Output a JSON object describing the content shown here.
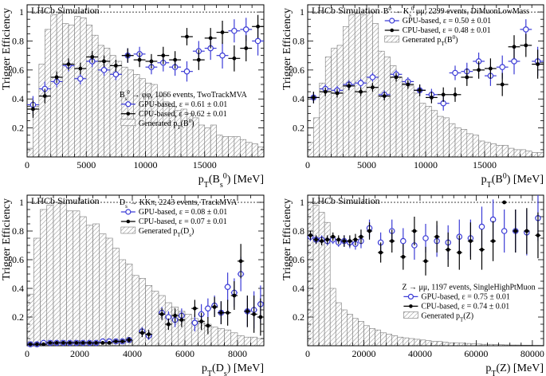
{
  "figure": {
    "ylabel": "Trigger Efficiency",
    "watermark": "LHCb Simulation"
  },
  "colors": {
    "gpu": "#3b3bd6",
    "cpu": "#000000",
    "hist": "#777777"
  },
  "chart_data": [
    {
      "type": "scatter",
      "watermark": "LHCb Simulation",
      "ylabel": "Trigger Efficiency",
      "xlabel": "p_T(B_s^0) [MeV]",
      "xlim": [
        0,
        20000
      ],
      "ylim": [
        0,
        1.05
      ],
      "xticks": [
        5000,
        10000,
        15000
      ],
      "yticks": [
        0.2,
        0.4,
        0.6,
        0.8,
        1
      ],
      "x_minor": 1000,
      "y_minor": 0.05,
      "legend_position": "middle-right",
      "legend": {
        "header": "B_s^0 → φφ, 1066 events, TwoTrackMVA",
        "gpu": "GPU-based, ε = 0.61 ± 0.01",
        "cpu": "CPU-based, ε = 0.62 ± 0.01",
        "hist": "Generated p_T(B^0)"
      },
      "hist": {
        "edges": [
          0,
          500,
          1000,
          1500,
          2000,
          2500,
          3000,
          3500,
          4000,
          4500,
          5000,
          5500,
          6000,
          6500,
          7000,
          7500,
          8000,
          8500,
          9000,
          9500,
          10000,
          10500,
          11000,
          11500,
          12000,
          12500,
          13000,
          13500,
          14000,
          14500,
          15000,
          15500,
          16000,
          16500,
          17000,
          17500,
          18000,
          18500,
          19000,
          19500,
          20000
        ],
        "values": [
          0.06,
          0.35,
          0.64,
          0.88,
          0.98,
          1.0,
          0.92,
          0.91,
          0.97,
          0.96,
          0.91,
          0.84,
          0.77,
          0.75,
          0.7,
          0.66,
          0.62,
          0.6,
          0.57,
          0.54,
          0.51,
          0.5,
          0.42,
          0.38,
          0.35,
          0.32,
          0.33,
          0.3,
          0.27,
          0.22,
          0.2,
          0.22,
          0.15,
          0.14,
          0.14,
          0.14,
          0.12,
          0.1,
          0.09,
          0.07
        ]
      },
      "gpu": {
        "x": [
          500,
          1500,
          2500,
          3500,
          4500,
          5500,
          6500,
          7500,
          8500,
          9500,
          10500,
          11500,
          12500,
          13500,
          14500,
          15500,
          16500,
          17500,
          18500,
          19500
        ],
        "y": [
          0.36,
          0.47,
          0.52,
          0.63,
          0.54,
          0.66,
          0.6,
          0.57,
          0.7,
          0.71,
          0.62,
          0.65,
          0.62,
          0.59,
          0.73,
          0.75,
          0.7,
          0.87,
          0.88,
          0.8
        ],
        "err": [
          0.06,
          0.05,
          0.04,
          0.04,
          0.04,
          0.04,
          0.04,
          0.04,
          0.05,
          0.05,
          0.05,
          0.06,
          0.06,
          0.07,
          0.07,
          0.08,
          0.09,
          0.08,
          0.08,
          0.1
        ]
      },
      "cpu": {
        "x": [
          500,
          1500,
          2500,
          3500,
          4500,
          5500,
          6500,
          7500,
          8500,
          9500,
          10500,
          11500,
          12500,
          13500,
          14500,
          15500,
          16500,
          17500,
          18500,
          19500
        ],
        "y": [
          0.33,
          0.42,
          0.55,
          0.64,
          0.61,
          0.69,
          0.66,
          0.63,
          0.7,
          0.67,
          0.66,
          0.7,
          0.67,
          0.83,
          0.67,
          0.82,
          0.86,
          0.68,
          0.75,
          0.9
        ],
        "err": [
          0.06,
          0.05,
          0.04,
          0.04,
          0.04,
          0.04,
          0.04,
          0.04,
          0.05,
          0.05,
          0.05,
          0.06,
          0.06,
          0.06,
          0.07,
          0.07,
          0.08,
          0.09,
          0.09,
          0.08
        ]
      }
    },
    {
      "type": "scatter",
      "watermark": "LHCb Simulation",
      "ylabel": "Trigger Efficiency",
      "xlabel": "p_T(B^0) [MeV]",
      "xlim": [
        0,
        20000
      ],
      "ylim": [
        0,
        1.05
      ],
      "xticks": [
        5000,
        10000,
        15000
      ],
      "yticks": [
        0.2,
        0.4,
        0.6,
        0.8,
        1
      ],
      "x_minor": 1000,
      "y_minor": 0.05,
      "legend_position": "top-right",
      "legend": {
        "header": "B^0 → K_s^0 μμ, 2299 events, DiMuonLowMass",
        "gpu": "GPU-based, ε = 0.50 ± 0.01",
        "cpu": "CPU-based, ε = 0.48 ± 0.01",
        "hist": "Generated p_T(B^0)"
      },
      "hist": {
        "edges": [
          0,
          500,
          1000,
          1500,
          2000,
          2500,
          3000,
          3500,
          4000,
          4500,
          5000,
          5500,
          6000,
          6500,
          7000,
          7500,
          8000,
          8500,
          9000,
          9500,
          10000,
          10500,
          11000,
          11500,
          12000,
          12500,
          13000,
          13500,
          14000,
          14500,
          15000,
          15500,
          16000,
          16500,
          17000,
          17500,
          18000,
          18500,
          19000,
          19500,
          20000
        ],
        "values": [
          0.1,
          0.27,
          0.51,
          0.69,
          0.75,
          0.77,
          0.9,
          0.98,
          0.99,
          0.98,
          1.0,
          0.92,
          0.73,
          0.69,
          0.63,
          0.55,
          0.51,
          0.49,
          0.44,
          0.37,
          0.35,
          0.32,
          0.28,
          0.27,
          0.23,
          0.2,
          0.19,
          0.16,
          0.15,
          0.11,
          0.1,
          0.09,
          0.08,
          0.08,
          0.06,
          0.05,
          0.05,
          0.04,
          0.03,
          0.03
        ]
      },
      "gpu": {
        "x": [
          500,
          1500,
          2500,
          3500,
          4500,
          5500,
          6500,
          7500,
          8500,
          9500,
          10500,
          11500,
          12500,
          13500,
          14500,
          15500,
          16500,
          17500,
          18500,
          19500
        ],
        "y": [
          0.41,
          0.47,
          0.46,
          0.5,
          0.51,
          0.55,
          0.43,
          0.57,
          0.52,
          0.46,
          0.43,
          0.37,
          0.58,
          0.59,
          0.66,
          0.56,
          0.62,
          0.66,
          0.88,
          0.66
        ],
        "err": [
          0.04,
          0.03,
          0.03,
          0.03,
          0.03,
          0.03,
          0.03,
          0.03,
          0.03,
          0.04,
          0.04,
          0.05,
          0.05,
          0.06,
          0.06,
          0.07,
          0.08,
          0.09,
          0.07,
          0.1
        ]
      },
      "cpu": {
        "x": [
          500,
          1500,
          2500,
          3500,
          4500,
          5500,
          6500,
          7500,
          8500,
          9500,
          10500,
          11500,
          12500,
          13500,
          14500,
          15500,
          16500,
          17500,
          18500,
          19500
        ],
        "y": [
          0.41,
          0.45,
          0.44,
          0.49,
          0.45,
          0.48,
          0.42,
          0.55,
          0.5,
          0.46,
          0.41,
          0.43,
          0.43,
          0.55,
          0.6,
          0.61,
          0.5,
          0.76,
          0.77,
          0.64
        ],
        "err": [
          0.04,
          0.03,
          0.03,
          0.03,
          0.03,
          0.03,
          0.03,
          0.03,
          0.03,
          0.04,
          0.04,
          0.05,
          0.05,
          0.06,
          0.06,
          0.07,
          0.08,
          0.08,
          0.08,
          0.1
        ]
      }
    },
    {
      "type": "scatter",
      "watermark": "LHCb Simulation",
      "ylabel": "Trigger Efficiency",
      "xlabel": "p_T(D_s) [MeV]",
      "xlim": [
        0,
        9000
      ],
      "ylim": [
        0,
        1.05
      ],
      "xticks": [
        2000,
        4000,
        6000,
        8000
      ],
      "yticks": [
        0.2,
        0.4,
        0.6,
        0.8,
        1
      ],
      "x_minor": 500,
      "y_minor": 0.05,
      "legend_position": "top-right",
      "legend": {
        "header": "D_s → KKπ, 2243 events, TrackMVA",
        "gpu": "GPU-based, ε = 0.08 ± 0.01",
        "cpu": "CPU-based, ε = 0.07 ± 0.01",
        "hist": "Generated p_T(D_s)"
      },
      "hist": {
        "edges": [
          0,
          250,
          500,
          750,
          1000,
          1250,
          1500,
          1750,
          2000,
          2250,
          2500,
          2750,
          3000,
          3250,
          3500,
          3750,
          4000,
          4250,
          4500,
          4750,
          5000,
          5250,
          5500,
          5750,
          6000,
          6250,
          6500,
          6750,
          7000,
          7250,
          7500,
          7750,
          8000,
          8250,
          8500,
          8750,
          9000
        ],
        "values": [
          0.36,
          0.75,
          0.95,
          0.98,
          1.0,
          0.99,
          0.94,
          0.94,
          0.9,
          0.84,
          0.85,
          0.78,
          0.75,
          0.68,
          0.6,
          0.57,
          0.49,
          0.47,
          0.42,
          0.38,
          0.35,
          0.3,
          0.27,
          0.24,
          0.22,
          0.19,
          0.16,
          0.15,
          0.13,
          0.12,
          0.11,
          0.09,
          0.07,
          0.06,
          0.06,
          0.05
        ]
      },
      "gpu": {
        "x": [
          125,
          375,
          625,
          875,
          1125,
          1375,
          1625,
          1875,
          2125,
          2375,
          2625,
          2875,
          3125,
          3375,
          3625,
          3875,
          4375,
          4625,
          5125,
          5375,
          5625,
          5875,
          6375,
          6625,
          6875,
          7125,
          7375,
          7625,
          7875,
          8125,
          8375,
          8625,
          8875
        ],
        "y": [
          0.01,
          0.01,
          0.02,
          0.02,
          0.02,
          0.02,
          0.02,
          0.02,
          0.02,
          0.02,
          0.02,
          0.03,
          0.03,
          0.03,
          0.03,
          0.04,
          0.1,
          0.07,
          0.23,
          0.2,
          0.18,
          0.21,
          0.16,
          0.22,
          0.26,
          0.28,
          0.23,
          0.41,
          0.37,
          0.5,
          0.24,
          0.25,
          0.29
        ],
        "err": [
          0.01,
          0.01,
          0.01,
          0.01,
          0.01,
          0.01,
          0.01,
          0.01,
          0.01,
          0.01,
          0.01,
          0.01,
          0.01,
          0.01,
          0.01,
          0.02,
          0.03,
          0.03,
          0.04,
          0.04,
          0.05,
          0.05,
          0.06,
          0.07,
          0.07,
          0.07,
          0.08,
          0.1,
          0.1,
          0.12,
          0.11,
          0.13,
          0.13
        ]
      },
      "cpu": {
        "x": [
          125,
          375,
          625,
          875,
          1125,
          1375,
          1625,
          1875,
          2125,
          2375,
          2625,
          2875,
          3125,
          3375,
          3625,
          3875,
          4375,
          4625,
          5125,
          5375,
          5625,
          5875,
          6375,
          6625,
          6875,
          7125,
          7375,
          7625,
          7875,
          8125,
          8375,
          8625,
          8875
        ],
        "y": [
          0.01,
          0.01,
          0.01,
          0.02,
          0.02,
          0.02,
          0.02,
          0.02,
          0.02,
          0.02,
          0.02,
          0.02,
          0.02,
          0.03,
          0.03,
          0.04,
          0.09,
          0.08,
          0.22,
          0.15,
          0.21,
          0.18,
          0.26,
          0.17,
          0.14,
          0.27,
          0.23,
          0.23,
          0.35,
          0.59,
          0.24,
          0.22,
          0.2
        ],
        "err": [
          0.01,
          0.01,
          0.01,
          0.01,
          0.01,
          0.01,
          0.01,
          0.01,
          0.01,
          0.01,
          0.01,
          0.01,
          0.01,
          0.01,
          0.01,
          0.02,
          0.03,
          0.03,
          0.04,
          0.04,
          0.05,
          0.05,
          0.06,
          0.06,
          0.06,
          0.07,
          0.08,
          0.09,
          0.1,
          0.12,
          0.11,
          0.13,
          0.13
        ]
      }
    },
    {
      "type": "scatter",
      "watermark": "LHCb Simulation",
      "ylabel": "Trigger Efficiency",
      "xlabel": "p_T(Z) [MeV]",
      "xlim": [
        0,
        84000
      ],
      "ylim": [
        0,
        1.05
      ],
      "xticks": [
        20000,
        40000,
        60000,
        80000
      ],
      "yticks": [
        0.2,
        0.4,
        0.6,
        0.8,
        1
      ],
      "x_minor": 4000,
      "y_minor": 0.05,
      "legend_position": "bottom-right",
      "legend": {
        "header": "Z → μμ, 1197 events, SingleHighPtMuon",
        "gpu": "GPU-based, ε = 0.75 ± 0.01",
        "cpu": "CPU-based, ε = 0.74 ± 0.01",
        "hist": "Generated p_T(Z)"
      },
      "hist": {
        "edges": [
          0,
          2000,
          4000,
          6000,
          8000,
          10000,
          12000,
          14000,
          16000,
          18000,
          20000,
          22000,
          24000,
          26000,
          28000,
          30000,
          32000,
          34000,
          36000,
          38000,
          40000,
          42000,
          44000,
          46000,
          48000,
          50000,
          52000,
          54000,
          56000,
          58000,
          60000,
          62000,
          64000,
          66000,
          68000,
          70000,
          72000,
          74000,
          76000,
          78000,
          80000,
          82000,
          84000
        ],
        "values": [
          1.0,
          0.98,
          0.93,
          0.86,
          0.4,
          0.3,
          0.25,
          0.22,
          0.19,
          0.17,
          0.14,
          0.12,
          0.11,
          0.09,
          0.08,
          0.07,
          0.06,
          0.055,
          0.05,
          0.045,
          0.04,
          0.035,
          0.03,
          0.03,
          0.025,
          0.02,
          0.02,
          0.018,
          0.016,
          0.014,
          0.012,
          0.01,
          0.01,
          0.008,
          0.007,
          0.006,
          0.005,
          0.005,
          0.004,
          0.004,
          0.003,
          0.003
        ]
      },
      "gpu": {
        "x": [
          1000,
          3000,
          5000,
          7000,
          9000,
          11000,
          13000,
          15000,
          17000,
          19000,
          22000,
          26000,
          30000,
          34000,
          38000,
          42000,
          46000,
          50000,
          54000,
          58000,
          62000,
          66000,
          70000,
          74000,
          78000,
          82000
        ],
        "y": [
          0.76,
          0.74,
          0.74,
          0.73,
          0.74,
          0.72,
          0.73,
          0.72,
          0.71,
          0.73,
          0.82,
          0.72,
          0.8,
          0.73,
          0.7,
          0.75,
          0.73,
          0.72,
          0.76,
          0.75,
          0.83,
          0.88,
          0.8,
          0.8,
          0.79,
          0.89
        ],
        "err": [
          0.03,
          0.03,
          0.03,
          0.03,
          0.03,
          0.03,
          0.04,
          0.04,
          0.04,
          0.05,
          0.06,
          0.07,
          0.08,
          0.09,
          0.1,
          0.1,
          0.11,
          0.12,
          0.12,
          0.13,
          0.14,
          0.14,
          0.15,
          0.15,
          0.16,
          0.16
        ]
      },
      "cpu": {
        "x": [
          1000,
          3000,
          5000,
          7000,
          9000,
          11000,
          13000,
          15000,
          17000,
          19000,
          22000,
          26000,
          30000,
          34000,
          38000,
          42000,
          46000,
          50000,
          54000,
          58000,
          62000,
          66000,
          70000,
          74000,
          78000,
          82000
        ],
        "y": [
          0.77,
          0.74,
          0.73,
          0.74,
          0.76,
          0.74,
          0.73,
          0.73,
          0.74,
          0.76,
          0.8,
          0.65,
          0.73,
          0.62,
          0.8,
          0.59,
          0.76,
          0.67,
          0.65,
          0.73,
          0.67,
          0.73,
          1.0,
          0.8,
          0.8,
          0.77
        ],
        "err": [
          0.03,
          0.03,
          0.03,
          0.03,
          0.03,
          0.03,
          0.04,
          0.04,
          0.04,
          0.05,
          0.06,
          0.07,
          0.08,
          0.09,
          0.1,
          0.1,
          0.11,
          0.12,
          0.12,
          0.13,
          0.14,
          0.14,
          0.0,
          0.15,
          0.16,
          0.16
        ]
      }
    }
  ]
}
